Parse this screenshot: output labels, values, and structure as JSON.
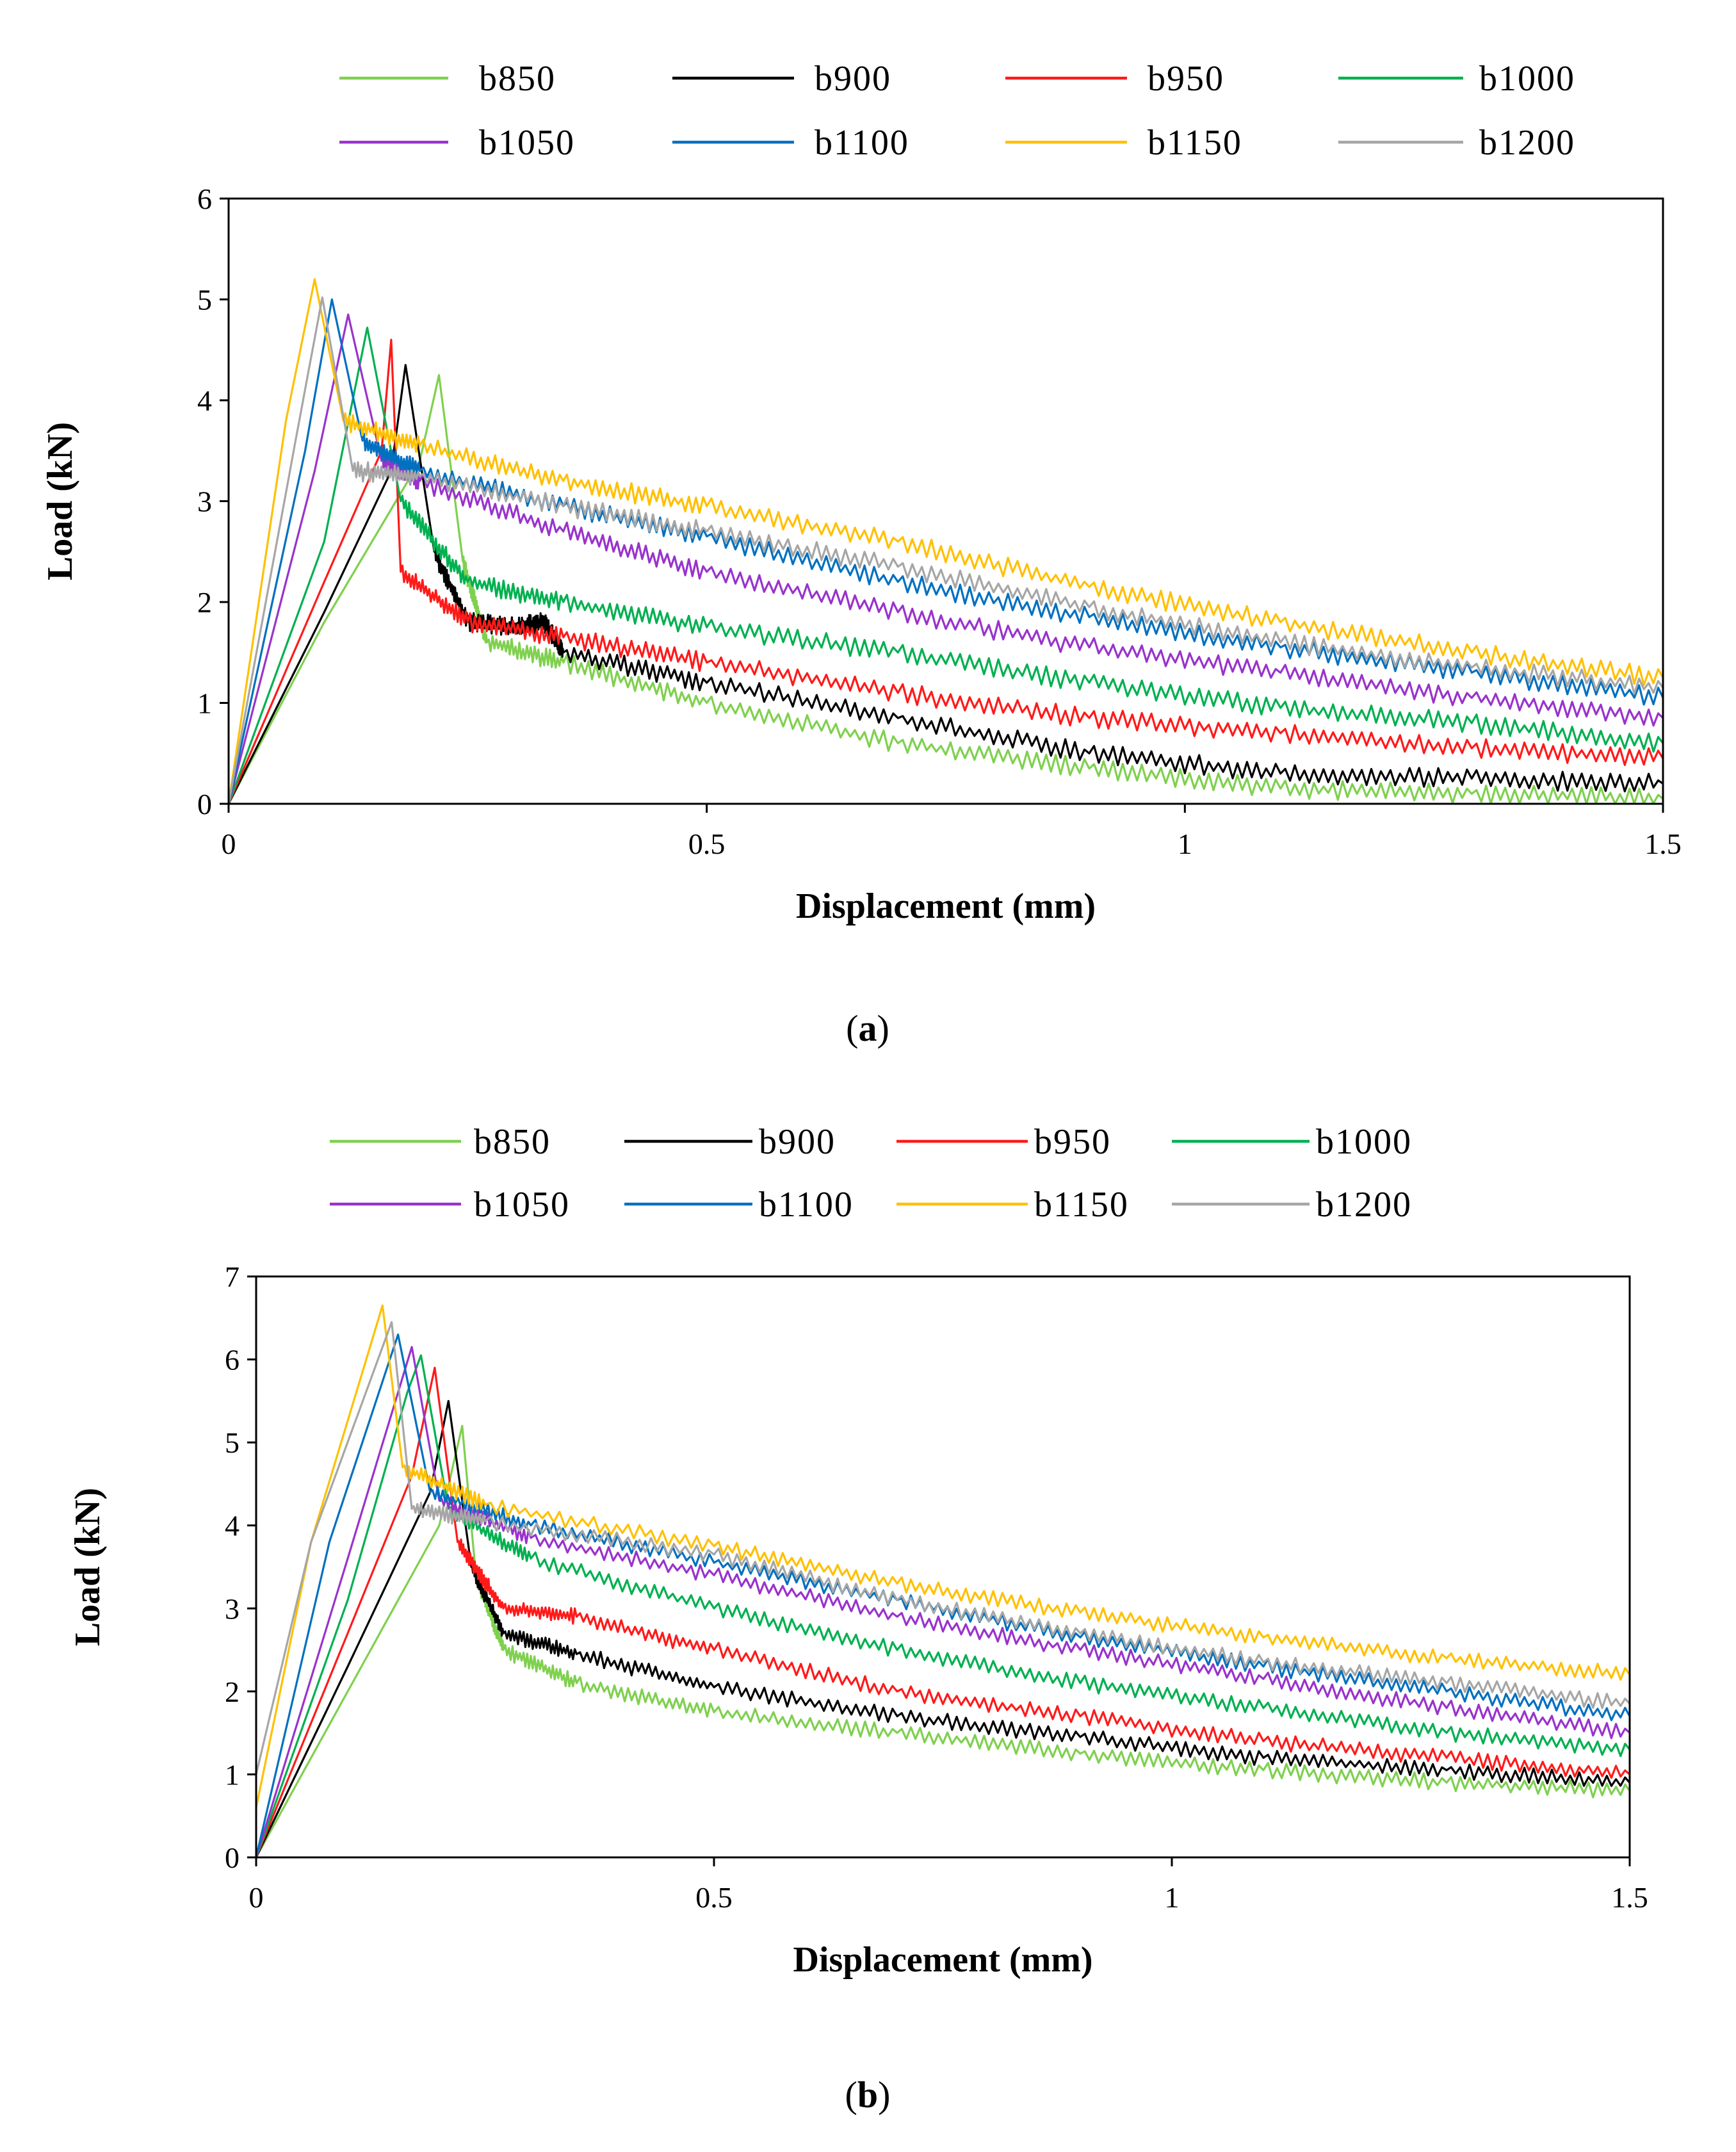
{
  "chart_data": [
    {
      "type": "line",
      "panel": "a",
      "caption": {
        "open": "(",
        "letter": "a",
        "close": ")"
      },
      "xlabel": "Displacement (mm)",
      "ylabel": "Load (kN)",
      "xlim": [
        0,
        1.5
      ],
      "ylim": [
        0,
        6
      ],
      "xticks": [
        0,
        0.5,
        1,
        1.5
      ],
      "xtick_labels": [
        "0",
        "0.5",
        "1",
        "1.5"
      ],
      "yticks": [
        0,
        1,
        2,
        3,
        4,
        5,
        6
      ],
      "ytick_labels": [
        "0",
        "1",
        "2",
        "3",
        "4",
        "5",
        "6"
      ],
      "grid": false,
      "legend_position": "top, two rows of four",
      "series": [
        {
          "name": "b850",
          "color": "#7fd04f",
          "points": [
            [
              0,
              0
            ],
            [
              0.1,
              1.8
            ],
            [
              0.2,
              3.4
            ],
            [
              0.22,
              4.25
            ],
            [
              0.245,
              2.4
            ],
            [
              0.27,
              1.6
            ],
            [
              0.35,
              1.4
            ],
            [
              0.5,
              1.0
            ],
            [
              0.7,
              0.6
            ],
            [
              0.9,
              0.35
            ],
            [
              1.1,
              0.15
            ],
            [
              1.3,
              0.1
            ],
            [
              1.5,
              0.05
            ]
          ]
        },
        {
          "name": "b900",
          "color": "#000000",
          "points": [
            [
              0,
              0
            ],
            [
              0.1,
              1.9
            ],
            [
              0.17,
              3.3
            ],
            [
              0.185,
              4.35
            ],
            [
              0.215,
              2.5
            ],
            [
              0.25,
              1.8
            ],
            [
              0.3,
              1.75
            ],
            [
              0.33,
              1.8
            ],
            [
              0.35,
              1.5
            ],
            [
              0.5,
              1.2
            ],
            [
              0.7,
              0.85
            ],
            [
              0.9,
              0.5
            ],
            [
              1.1,
              0.3
            ],
            [
              1.3,
              0.25
            ],
            [
              1.5,
              0.2
            ]
          ]
        },
        {
          "name": "b950",
          "color": "#ff1a1a",
          "points": [
            [
              0,
              0
            ],
            [
              0.1,
              2.2
            ],
            [
              0.16,
              3.5
            ],
            [
              0.17,
              4.6
            ],
            [
              0.18,
              2.3
            ],
            [
              0.25,
              1.8
            ],
            [
              0.35,
              1.65
            ],
            [
              0.5,
              1.4
            ],
            [
              0.7,
              1.1
            ],
            [
              0.9,
              0.85
            ],
            [
              1.1,
              0.7
            ],
            [
              1.3,
              0.55
            ],
            [
              1.5,
              0.45
            ]
          ]
        },
        {
          "name": "b1000",
          "color": "#00b050",
          "points": [
            [
              0,
              0
            ],
            [
              0.1,
              2.6
            ],
            [
              0.145,
              4.72
            ],
            [
              0.18,
              3.0
            ],
            [
              0.25,
              2.2
            ],
            [
              0.35,
              2.0
            ],
            [
              0.5,
              1.75
            ],
            [
              0.7,
              1.5
            ],
            [
              0.9,
              1.2
            ],
            [
              1.1,
              0.95
            ],
            [
              1.3,
              0.8
            ],
            [
              1.5,
              0.6
            ]
          ]
        },
        {
          "name": "b1050",
          "color": "#9933cc",
          "points": [
            [
              0,
              0
            ],
            [
              0.09,
              3.3
            ],
            [
              0.125,
              4.85
            ],
            [
              0.16,
              3.4
            ],
            [
              0.2,
              3.2
            ],
            [
              0.35,
              2.7
            ],
            [
              0.5,
              2.3
            ],
            [
              0.7,
              1.9
            ],
            [
              0.9,
              1.55
            ],
            [
              1.1,
              1.3
            ],
            [
              1.3,
              1.05
            ],
            [
              1.5,
              0.85
            ]
          ]
        },
        {
          "name": "b1100",
          "color": "#0070c0",
          "points": [
            [
              0,
              0
            ],
            [
              0.08,
              3.5
            ],
            [
              0.108,
              5.0
            ],
            [
              0.14,
              3.6
            ],
            [
              0.2,
              3.3
            ],
            [
              0.35,
              2.95
            ],
            [
              0.5,
              2.65
            ],
            [
              0.7,
              2.2
            ],
            [
              0.9,
              1.85
            ],
            [
              1.1,
              1.55
            ],
            [
              1.3,
              1.3
            ],
            [
              1.5,
              1.05
            ]
          ]
        },
        {
          "name": "b1150",
          "color": "#ffc000",
          "points": [
            [
              0,
              0
            ],
            [
              0.06,
              3.8
            ],
            [
              0.09,
              5.2
            ],
            [
              0.12,
              3.8
            ],
            [
              0.2,
              3.55
            ],
            [
              0.35,
              3.2
            ],
            [
              0.5,
              2.95
            ],
            [
              0.7,
              2.6
            ],
            [
              0.9,
              2.15
            ],
            [
              1.1,
              1.8
            ],
            [
              1.3,
              1.5
            ],
            [
              1.5,
              1.25
            ]
          ]
        },
        {
          "name": "b1200",
          "color": "#a6a6a6",
          "points": [
            [
              0,
              0
            ],
            [
              0.07,
              3.6
            ],
            [
              0.098,
              5.02
            ],
            [
              0.13,
              3.3
            ],
            [
              0.2,
              3.25
            ],
            [
              0.35,
              2.95
            ],
            [
              0.5,
              2.7
            ],
            [
              0.7,
              2.35
            ],
            [
              0.9,
              1.95
            ],
            [
              1.1,
              1.6
            ],
            [
              1.3,
              1.35
            ],
            [
              1.5,
              1.15
            ]
          ]
        }
      ]
    },
    {
      "type": "line",
      "panel": "b",
      "caption": {
        "open": "(",
        "letter": "b",
        "close": ")"
      },
      "xlabel": "Displacement (mm)",
      "ylabel": "Load (kN)",
      "xlim": [
        0,
        1.5
      ],
      "ylim": [
        0,
        7
      ],
      "xticks": [
        0,
        0.5,
        1,
        1.5
      ],
      "xtick_labels": [
        "0",
        "0.5",
        "1",
        "1.5"
      ],
      "yticks": [
        0,
        1,
        2,
        3,
        4,
        5,
        6,
        7
      ],
      "ytick_labels": [
        "0",
        "1",
        "2",
        "3",
        "4",
        "5",
        "6",
        "7"
      ],
      "grid": false,
      "legend_position": "top, two rows of four",
      "series": [
        {
          "name": "b850",
          "color": "#7fd04f",
          "points": [
            [
              0,
              0
            ],
            [
              0.1,
              2.0
            ],
            [
              0.2,
              4.0
            ],
            [
              0.225,
              5.2
            ],
            [
              0.24,
              3.4
            ],
            [
              0.27,
              2.5
            ],
            [
              0.35,
              2.1
            ],
            [
              0.5,
              1.75
            ],
            [
              0.7,
              1.5
            ],
            [
              0.9,
              1.25
            ],
            [
              1.1,
              1.05
            ],
            [
              1.3,
              0.9
            ],
            [
              1.5,
              0.8
            ]
          ]
        },
        {
          "name": "b900",
          "color": "#000000",
          "points": [
            [
              0,
              0
            ],
            [
              0.1,
              2.3
            ],
            [
              0.19,
              4.4
            ],
            [
              0.21,
              5.5
            ],
            [
              0.235,
              3.5
            ],
            [
              0.27,
              2.7
            ],
            [
              0.35,
              2.45
            ],
            [
              0.5,
              2.05
            ],
            [
              0.7,
              1.7
            ],
            [
              0.9,
              1.45
            ],
            [
              1.1,
              1.2
            ],
            [
              1.3,
              1.05
            ],
            [
              1.5,
              0.9
            ]
          ]
        },
        {
          "name": "b950",
          "color": "#ff1a1a",
          "points": [
            [
              0,
              0
            ],
            [
              0.1,
              2.7
            ],
            [
              0.17,
              4.6
            ],
            [
              0.195,
              5.9
            ],
            [
              0.22,
              3.8
            ],
            [
              0.27,
              3.0
            ],
            [
              0.35,
              2.9
            ],
            [
              0.5,
              2.5
            ],
            [
              0.7,
              2.0
            ],
            [
              0.9,
              1.7
            ],
            [
              1.1,
              1.4
            ],
            [
              1.3,
              1.2
            ],
            [
              1.5,
              1.0
            ]
          ]
        },
        {
          "name": "b1000",
          "color": "#00b050",
          "points": [
            [
              0,
              0
            ],
            [
              0.1,
              3.1
            ],
            [
              0.165,
              5.6
            ],
            [
              0.18,
              6.05
            ],
            [
              0.21,
              4.2
            ],
            [
              0.3,
              3.6
            ],
            [
              0.5,
              3.0
            ],
            [
              0.7,
              2.5
            ],
            [
              0.9,
              2.1
            ],
            [
              1.1,
              1.8
            ],
            [
              1.3,
              1.5
            ],
            [
              1.5,
              1.3
            ]
          ]
        },
        {
          "name": "b1050",
          "color": "#9933cc",
          "points": [
            [
              0,
              0
            ],
            [
              0.1,
              3.6
            ],
            [
              0.17,
              6.15
            ],
            [
              0.2,
              4.3
            ],
            [
              0.3,
              3.85
            ],
            [
              0.5,
              3.4
            ],
            [
              0.7,
              2.9
            ],
            [
              0.9,
              2.5
            ],
            [
              1.1,
              2.15
            ],
            [
              1.3,
              1.8
            ],
            [
              1.5,
              1.5
            ]
          ]
        },
        {
          "name": "b1100",
          "color": "#0070c0",
          "points": [
            [
              0,
              0
            ],
            [
              0.08,
              3.8
            ],
            [
              0.155,
              6.3
            ],
            [
              0.19,
              4.4
            ],
            [
              0.3,
              4.0
            ],
            [
              0.5,
              3.55
            ],
            [
              0.7,
              3.1
            ],
            [
              0.9,
              2.65
            ],
            [
              1.1,
              2.3
            ],
            [
              1.3,
              2.0
            ],
            [
              1.5,
              1.7
            ]
          ]
        },
        {
          "name": "b1150",
          "color": "#ffc000",
          "points": [
            [
              0,
              0.6
            ],
            [
              0.06,
              3.8
            ],
            [
              0.138,
              6.65
            ],
            [
              0.16,
              4.7
            ],
            [
              0.25,
              4.25
            ],
            [
              0.5,
              3.75
            ],
            [
              0.7,
              3.3
            ],
            [
              0.9,
              2.95
            ],
            [
              1.1,
              2.65
            ],
            [
              1.3,
              2.4
            ],
            [
              1.5,
              2.2
            ]
          ]
        },
        {
          "name": "b1200",
          "color": "#a6a6a6",
          "points": [
            [
              0,
              1.0
            ],
            [
              0.06,
              3.8
            ],
            [
              0.148,
              6.45
            ],
            [
              0.17,
              4.2
            ],
            [
              0.25,
              4.05
            ],
            [
              0.5,
              3.65
            ],
            [
              0.7,
              3.1
            ],
            [
              0.9,
              2.7
            ],
            [
              1.1,
              2.35
            ],
            [
              1.3,
              2.1
            ],
            [
              1.5,
              1.85
            ]
          ]
        }
      ]
    }
  ]
}
